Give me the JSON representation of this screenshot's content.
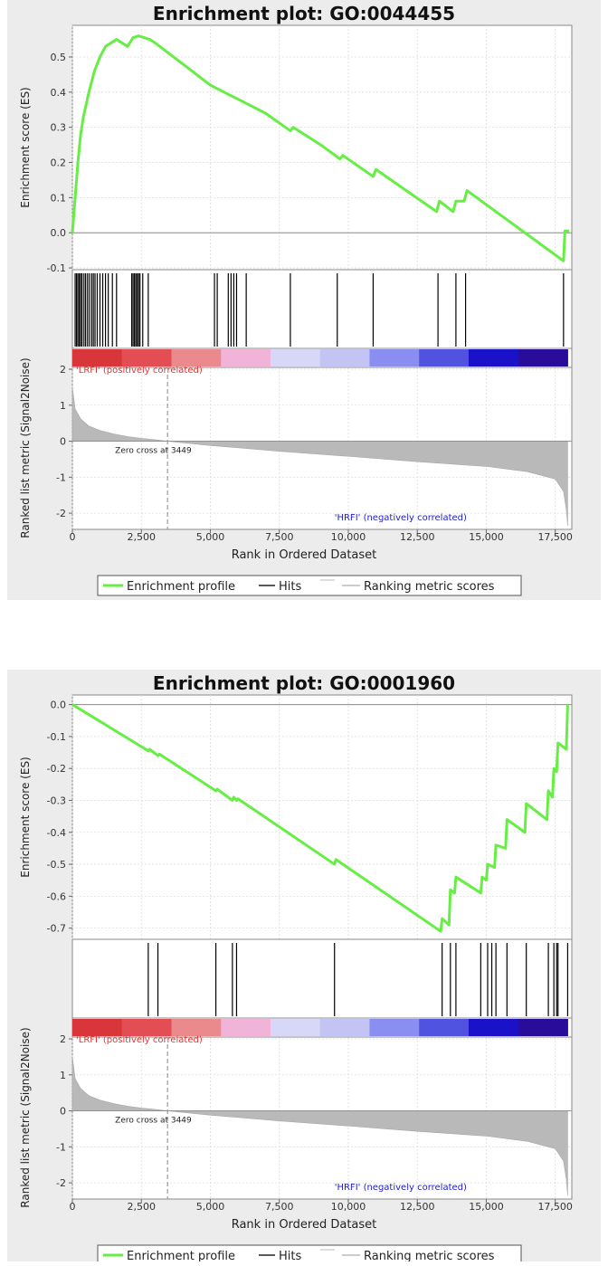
{
  "chart_data": [
    {
      "type": "line",
      "title": "Enrichment plot: GO:0044455",
      "es_ylabel": "Enrichment score (ES)",
      "metric_ylabel": "Ranked list metric (Signal2Noise)",
      "xlabel": "Rank in Ordered Dataset",
      "x_ticks": [
        "0",
        "2,500",
        "5,000",
        "7,500",
        "10,000",
        "12,500",
        "15,000",
        "17,500"
      ],
      "x_tick_values": [
        0,
        2500,
        5000,
        7500,
        10000,
        12500,
        15000,
        17500
      ],
      "xlim": [
        0,
        18100
      ],
      "es_ylim": [
        -0.105,
        0.59
      ],
      "es_y_ticks": [
        -0.1,
        0.0,
        0.1,
        0.2,
        0.3,
        0.4,
        0.5
      ],
      "es_y_tick_labels": [
        "-0.1",
        "0.0",
        "0.1",
        "0.2",
        "0.3",
        "0.4",
        "0.5"
      ],
      "metric_ylim": [
        -2.45,
        2.05
      ],
      "metric_y_ticks": [
        2,
        1,
        0,
        -1,
        -2
      ],
      "metric_y_tick_labels": [
        "2",
        "1",
        "0",
        "-1",
        "-2"
      ],
      "enrichment_profile": {
        "x": [
          0,
          100,
          200,
          300,
          400,
          600,
          800,
          1000,
          1200,
          1400,
          1600,
          1800,
          2000,
          2200,
          2400,
          2600,
          2800,
          3000,
          4000,
          5000,
          6000,
          7000,
          7900,
          8000,
          9000,
          9700,
          9800,
          10900,
          11000,
          13200,
          13300,
          13800,
          13900,
          14200,
          14300,
          17800,
          17850,
          18000
        ],
        "y": [
          0.0,
          0.1,
          0.2,
          0.28,
          0.33,
          0.4,
          0.46,
          0.5,
          0.53,
          0.54,
          0.55,
          0.54,
          0.53,
          0.555,
          0.56,
          0.555,
          0.55,
          0.54,
          0.48,
          0.42,
          0.38,
          0.34,
          0.29,
          0.3,
          0.25,
          0.21,
          0.22,
          0.16,
          0.18,
          0.06,
          0.09,
          0.06,
          0.09,
          0.09,
          0.12,
          -0.08,
          0.005,
          0.005
        ]
      },
      "hits": [
        100,
        150,
        200,
        250,
        300,
        350,
        420,
        480,
        550,
        620,
        700,
        760,
        820,
        900,
        1000,
        1100,
        1200,
        1300,
        1450,
        1600,
        2150,
        2200,
        2250,
        2300,
        2350,
        2400,
        2450,
        2550,
        2750,
        5150,
        5250,
        5650,
        5750,
        5850,
        5950,
        6300,
        7900,
        9600,
        10900,
        13250,
        13900,
        14250,
        17800
      ],
      "metric_profile": {
        "x": [
          0,
          100,
          300,
          600,
          1000,
          1500,
          2000,
          2500,
          3000,
          3449,
          5000,
          7500,
          10000,
          12500,
          15000,
          16500,
          17500,
          17800,
          17900,
          17950
        ],
        "y": [
          1.5,
          0.9,
          0.62,
          0.42,
          0.3,
          0.2,
          0.13,
          0.08,
          0.04,
          0.0,
          -0.12,
          -0.28,
          -0.42,
          -0.57,
          -0.7,
          -0.85,
          -1.05,
          -1.4,
          -1.9,
          -2.35
        ]
      },
      "labels": {
        "positive": "'LRFI' (positively correlated)",
        "negative": "'HRFI' (negatively correlated)",
        "zero_cross": "Zero cross at 3449"
      },
      "zero_cross": 3449,
      "legend": [
        "Enrichment profile",
        "Hits",
        "Ranking metric scores"
      ]
    },
    {
      "type": "line",
      "title": "Enrichment plot: GO:0001960",
      "es_ylabel": "Enrichment score (ES)",
      "metric_ylabel": "Ranked list metric (Signal2Noise)",
      "xlabel": "Rank in Ordered Dataset",
      "x_ticks": [
        "0",
        "2,500",
        "5,000",
        "7,500",
        "10,000",
        "12,500",
        "15,000",
        "17,500"
      ],
      "x_tick_values": [
        0,
        2500,
        5000,
        7500,
        10000,
        12500,
        15000,
        17500
      ],
      "xlim": [
        0,
        18100
      ],
      "es_ylim": [
        -0.735,
        0.03
      ],
      "es_y_ticks": [
        0.0,
        -0.1,
        -0.2,
        -0.3,
        -0.4,
        -0.5,
        -0.6,
        -0.7
      ],
      "es_y_tick_labels": [
        "0.0",
        "-0.1",
        "-0.2",
        "-0.3",
        "-0.4",
        "-0.5",
        "-0.6",
        "-0.7"
      ],
      "metric_ylim": [
        -2.45,
        2.05
      ],
      "metric_y_ticks": [
        2,
        1,
        0,
        -1,
        -2
      ],
      "metric_y_tick_labels": [
        "2",
        "1",
        "0",
        "-1",
        "-2"
      ],
      "enrichment_profile": {
        "x": [
          0,
          2750,
          2800,
          3100,
          3150,
          5200,
          5250,
          5800,
          5850,
          5950,
          6000,
          9500,
          9550,
          13350,
          13400,
          13650,
          13700,
          13850,
          13900,
          14800,
          14850,
          15000,
          15050,
          15300,
          15350,
          15700,
          15750,
          16400,
          16450,
          17200,
          17250,
          17400,
          17450,
          17550,
          17600,
          17900,
          17950
        ],
        "y": [
          0.0,
          -0.145,
          -0.14,
          -0.16,
          -0.155,
          -0.27,
          -0.265,
          -0.3,
          -0.29,
          -0.3,
          -0.295,
          -0.5,
          -0.485,
          -0.71,
          -0.67,
          -0.69,
          -0.58,
          -0.59,
          -0.54,
          -0.59,
          -0.54,
          -0.55,
          -0.5,
          -0.51,
          -0.44,
          -0.45,
          -0.36,
          -0.4,
          -0.31,
          -0.36,
          -0.27,
          -0.29,
          -0.2,
          -0.21,
          -0.12,
          -0.14,
          0.0
        ]
      },
      "hits": [
        2750,
        3100,
        5200,
        5800,
        5950,
        9500,
        13400,
        13700,
        13900,
        14800,
        15050,
        15200,
        15350,
        15750,
        16450,
        17250,
        17450,
        17550,
        17600,
        17950
      ],
      "metric_profile": {
        "x": [
          0,
          100,
          300,
          600,
          1000,
          1500,
          2000,
          2500,
          3000,
          3449,
          5000,
          7500,
          10000,
          12500,
          15000,
          16500,
          17500,
          17800,
          17900,
          17950
        ],
        "y": [
          1.5,
          0.9,
          0.62,
          0.42,
          0.3,
          0.2,
          0.13,
          0.08,
          0.04,
          0.0,
          -0.12,
          -0.28,
          -0.42,
          -0.57,
          -0.7,
          -0.85,
          -1.05,
          -1.4,
          -1.9,
          -2.35
        ]
      },
      "labels": {
        "positive": "'LRFI' (positively correlated)",
        "negative": "'HRFI' (negatively correlated)",
        "zero_cross": "Zero cross at 3449"
      },
      "zero_cross": 3449,
      "legend": [
        "Enrichment profile",
        "Hits",
        "Ranking metric scores"
      ]
    }
  ],
  "colors": {
    "profile": "#66ee44",
    "hits": "#000000",
    "metric_fill": "#b9b9b9",
    "positive_label": "#e8322e",
    "negative_label": "#2020cc",
    "zero_line": "#9a9a9a",
    "ranking_bar": [
      "#d9363c",
      "#e24e54",
      "#ea8a8c",
      "#f1b4d8",
      "#d7d7f7",
      "#c4c4f4",
      "#8a8ef0",
      "#5252e0",
      "#1a12c8",
      "#2a0c9a"
    ]
  }
}
